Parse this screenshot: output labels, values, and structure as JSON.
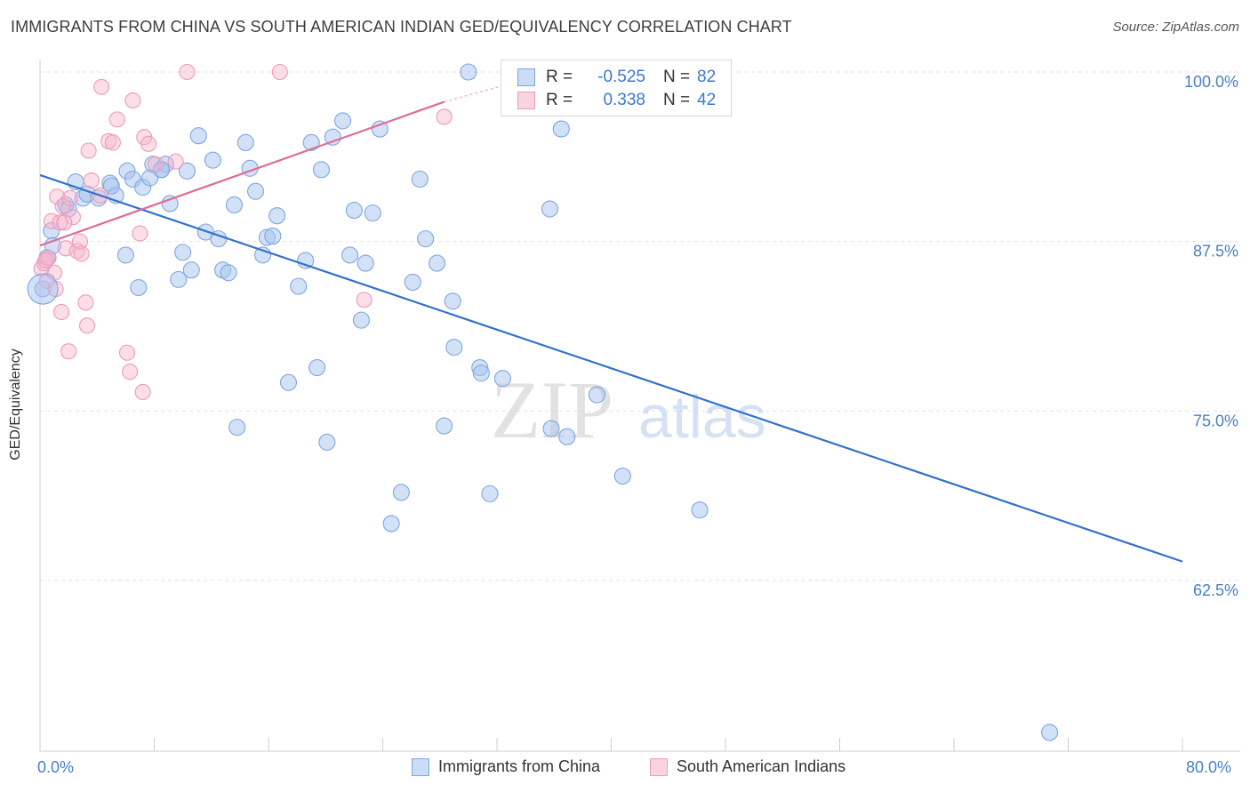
{
  "title": "IMMIGRANTS FROM CHINA VS SOUTH AMERICAN INDIAN GED/EQUIVALENCY CORRELATION CHART",
  "source": "Source: ZipAtlas.com",
  "watermark": {
    "zip": "ZIP",
    "atlas": "atlas"
  },
  "colors": {
    "blue_fill": "rgba(168,196,240,0.5)",
    "blue_stroke": "#7ea6e0",
    "blue_line": "#3372cc",
    "pink_fill": "rgba(246,182,204,0.45)",
    "pink_stroke": "#ee9ab8",
    "pink_line": "#e06b96",
    "axis_text": "#4a7fc8"
  },
  "legend": {
    "rows": [
      {
        "r_label": "R =",
        "r_value": "-0.525",
        "n_label": "N =",
        "n_value": "82"
      },
      {
        "r_label": "R =",
        "r_value": "0.338",
        "n_label": "N =",
        "n_value": "42"
      }
    ]
  },
  "bottom_legend": {
    "series_a": "Immigrants from China",
    "series_b": "South American Indians"
  },
  "chart_data": {
    "type": "scatter",
    "title": "IMMIGRANTS FROM CHINA VS SOUTH AMERICAN INDIAN GED/EQUIVALENCY CORRELATION CHART",
    "xlabel": "",
    "ylabel": "GED/Equivalency",
    "xlim": [
      0,
      80
    ],
    "ylim": [
      50,
      100.5
    ],
    "x_tick_labels": [
      "0.0%",
      "80.0%"
    ],
    "y_ticks": [
      62.5,
      75.0,
      87.5,
      100.0
    ],
    "y_tick_labels": [
      "62.5%",
      "75.0%",
      "87.5%",
      "100.0%"
    ],
    "grid": true,
    "legend_position": "top-center",
    "series": [
      {
        "name": "Immigrants from China",
        "color": "#7ea6e0",
        "points": [
          [
            0.2,
            84.0
          ],
          [
            0.5,
            86.3
          ],
          [
            0.8,
            88.3
          ],
          [
            0.9,
            87.2
          ],
          [
            1.8,
            90.2
          ],
          [
            2.0,
            89.9
          ],
          [
            2.5,
            91.9
          ],
          [
            3.0,
            90.7
          ],
          [
            3.3,
            91.0
          ],
          [
            4.1,
            90.7
          ],
          [
            4.9,
            91.8
          ],
          [
            5.3,
            90.9
          ],
          [
            6.0,
            86.5
          ],
          [
            6.1,
            92.7
          ],
          [
            6.5,
            92.1
          ],
          [
            6.9,
            84.1
          ],
          [
            7.2,
            91.5
          ],
          [
            7.7,
            92.2
          ],
          [
            7.9,
            93.2
          ],
          [
            8.5,
            92.8
          ],
          [
            8.8,
            93.2
          ],
          [
            9.1,
            90.3
          ],
          [
            9.7,
            84.7
          ],
          [
            10.0,
            86.7
          ],
          [
            10.3,
            92.7
          ],
          [
            10.6,
            85.4
          ],
          [
            11.1,
            95.3
          ],
          [
            11.6,
            88.2
          ],
          [
            12.1,
            93.5
          ],
          [
            12.5,
            87.7
          ],
          [
            12.8,
            85.4
          ],
          [
            13.2,
            85.2
          ],
          [
            13.6,
            90.2
          ],
          [
            14.4,
            94.8
          ],
          [
            14.7,
            92.9
          ],
          [
            15.1,
            91.2
          ],
          [
            15.6,
            86.5
          ],
          [
            15.9,
            87.8
          ],
          [
            16.3,
            87.9
          ],
          [
            16.6,
            89.4
          ],
          [
            17.4,
            77.1
          ],
          [
            18.1,
            84.2
          ],
          [
            18.6,
            86.1
          ],
          [
            19.0,
            94.8
          ],
          [
            19.4,
            78.2
          ],
          [
            19.7,
            92.8
          ],
          [
            20.1,
            72.7
          ],
          [
            20.5,
            95.2
          ],
          [
            21.2,
            96.4
          ],
          [
            21.7,
            86.5
          ],
          [
            22.0,
            89.8
          ],
          [
            22.5,
            81.7
          ],
          [
            22.8,
            85.9
          ],
          [
            23.3,
            89.6
          ],
          [
            23.8,
            95.8
          ],
          [
            24.6,
            66.7
          ],
          [
            25.3,
            69.0
          ],
          [
            26.1,
            84.5
          ],
          [
            26.6,
            92.1
          ],
          [
            27.0,
            87.7
          ],
          [
            27.8,
            85.9
          ],
          [
            28.3,
            73.9
          ],
          [
            28.9,
            83.1
          ],
          [
            29.0,
            79.7
          ],
          [
            30.0,
            100.0
          ],
          [
            30.8,
            78.2
          ],
          [
            30.9,
            77.8
          ],
          [
            31.5,
            68.9
          ],
          [
            32.4,
            77.4
          ],
          [
            33.0,
            100.0
          ],
          [
            33.3,
            99.4
          ],
          [
            35.7,
            89.9
          ],
          [
            35.8,
            73.7
          ],
          [
            36.5,
            95.8
          ],
          [
            36.9,
            73.1
          ],
          [
            39.0,
            76.2
          ],
          [
            40.8,
            70.2
          ],
          [
            46.2,
            67.7
          ],
          [
            8.5,
            92.8
          ],
          [
            5.0,
            91.6
          ],
          [
            13.8,
            73.8
          ],
          [
            70.7,
            51.3
          ]
        ]
      },
      {
        "name": "South American Indians",
        "color": "#ee9ab8",
        "points": [
          [
            0.1,
            85.5
          ],
          [
            0.3,
            85.9
          ],
          [
            0.5,
            84.6
          ],
          [
            0.6,
            86.3
          ],
          [
            0.8,
            89.0
          ],
          [
            1.0,
            85.2
          ],
          [
            1.1,
            84.0
          ],
          [
            1.2,
            90.8
          ],
          [
            1.4,
            88.9
          ],
          [
            1.5,
            82.3
          ],
          [
            1.6,
            90.1
          ],
          [
            1.8,
            87.0
          ],
          [
            2.0,
            79.4
          ],
          [
            2.1,
            90.7
          ],
          [
            2.3,
            89.3
          ],
          [
            2.6,
            86.8
          ],
          [
            2.8,
            87.5
          ],
          [
            2.9,
            86.6
          ],
          [
            3.2,
            83.0
          ],
          [
            3.3,
            81.3
          ],
          [
            3.4,
            94.2
          ],
          [
            3.6,
            92.0
          ],
          [
            4.2,
            90.9
          ],
          [
            4.3,
            98.9
          ],
          [
            4.8,
            94.9
          ],
          [
            5.1,
            94.8
          ],
          [
            5.4,
            96.5
          ],
          [
            6.1,
            79.3
          ],
          [
            6.3,
            77.9
          ],
          [
            6.5,
            97.9
          ],
          [
            7.0,
            88.1
          ],
          [
            7.2,
            76.4
          ],
          [
            7.3,
            95.2
          ],
          [
            7.6,
            94.7
          ],
          [
            8.1,
            93.2
          ],
          [
            9.5,
            93.4
          ],
          [
            10.3,
            100.0
          ],
          [
            16.8,
            100.0
          ],
          [
            22.7,
            83.2
          ],
          [
            28.3,
            96.7
          ],
          [
            1.7,
            88.9
          ],
          [
            0.4,
            86.1
          ]
        ]
      }
    ],
    "trend_lines": [
      {
        "series": "Immigrants from China",
        "x": [
          0,
          80
        ],
        "y": [
          92.4,
          63.9
        ]
      },
      {
        "series": "South American Indians",
        "x": [
          0,
          28.3
        ],
        "y": [
          87.2,
          97.8
        ]
      }
    ]
  }
}
